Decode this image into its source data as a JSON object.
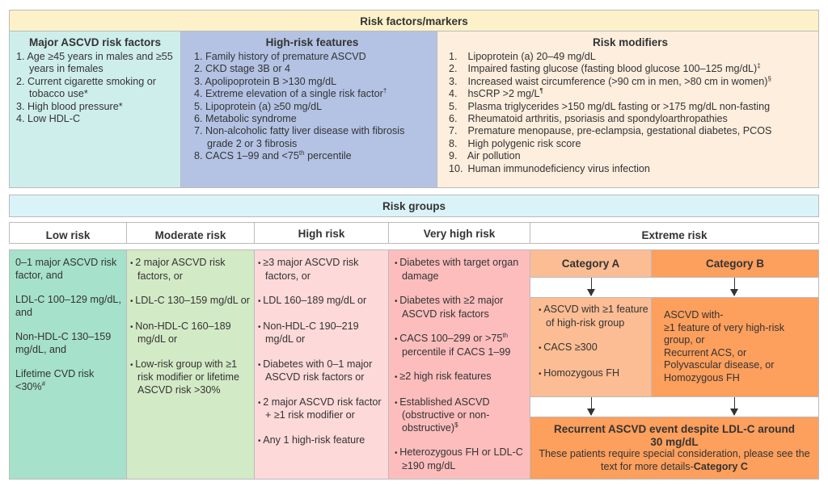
{
  "risk_factors": {
    "title": "Risk factors/markers",
    "major": {
      "title": "Major ASCVD risk factors",
      "items": [
        {
          "n": "1.",
          "text": "Age ≥45 years in males and ≥55 years in females",
          "sup": ""
        },
        {
          "n": "2.",
          "text": "Current cigarette smoking or tobacco use*",
          "sup": ""
        },
        {
          "n": "3.",
          "text": "High blood pressure*",
          "sup": ""
        },
        {
          "n": "4.",
          "text": "Low HDL-C",
          "sup": ""
        }
      ]
    },
    "high_risk": {
      "title": "High-risk features",
      "items": [
        {
          "n": "1.",
          "text": "Family history of premature ASCVD",
          "sup": ""
        },
        {
          "n": "2.",
          "text": "CKD stage 3B or 4",
          "sup": ""
        },
        {
          "n": "3.",
          "text": "Apolipoprotein B >130 mg/dL",
          "sup": ""
        },
        {
          "n": "4.",
          "text": "Extreme elevation of a single risk factor",
          "sup": "†"
        },
        {
          "n": "5.",
          "text": "Lipoprotein (a) ≥50 mg/dL",
          "sup": ""
        },
        {
          "n": "6.",
          "text": "Metabolic syndrome",
          "sup": ""
        },
        {
          "n": "7.",
          "text": "Non-alcoholic fatty liver disease with fibrosis grade 2 or 3 fibrosis",
          "sup": ""
        },
        {
          "n": "8.",
          "text": "CACS 1–99 and <75",
          "sup": "th",
          "after": " percentile"
        }
      ]
    },
    "modifiers": {
      "title": "Risk modifiers",
      "items": [
        {
          "n": "1.",
          "text": "Lipoprotein (a) 20–49 mg/dL",
          "sup": ""
        },
        {
          "n": "2.",
          "text": "Impaired fasting glucose (fasting blood glucose 100–125 mg/dL)",
          "sup": "‡"
        },
        {
          "n": "3.",
          "text": "Increased waist circumference (>90 cm in men, >80 cm in women)",
          "sup": "§"
        },
        {
          "n": "4.",
          "text": "hsCRP >2 mg/L",
          "sup": "¶"
        },
        {
          "n": "5.",
          "text": "Plasma triglycerides >150 mg/dL fasting or >175 mg/dL non-fasting",
          "sup": ""
        },
        {
          "n": "6.",
          "text": "Rheumatoid arthritis, psoriasis and spondyloarthropathies",
          "sup": ""
        },
        {
          "n": "7.",
          "text": "Premature menopause, pre-eclampsia, gestational diabetes, PCOS",
          "sup": ""
        },
        {
          "n": "8.",
          "text": "High polygenic risk score",
          "sup": ""
        },
        {
          "n": "9.",
          "text": "Air pollution",
          "sup": ""
        },
        {
          "n": "10.",
          "text": "Human immunodeficiency virus infection",
          "sup": ""
        }
      ]
    }
  },
  "risk_groups": {
    "title": "Risk groups",
    "headers": [
      "Low risk",
      "Moderate risk",
      "High risk",
      "Very high risk",
      "Extreme risk"
    ],
    "low": [
      {
        "text": "0–1 major ASCVD risk factor, and",
        "sup": ""
      },
      {
        "text": "LDL-C 100–129 mg/dL, and",
        "sup": ""
      },
      {
        "text": "Non-HDL-C 130–159 mg/dL, and",
        "sup": ""
      },
      {
        "text": "Lifetime CVD risk <30%",
        "sup": "#"
      }
    ],
    "moderate": [
      {
        "text": "2 major ASCVD risk factors, or",
        "sup": ""
      },
      {
        "text": "LDL-C 130–159 mg/dL or",
        "sup": ""
      },
      {
        "text": "Non-HDL-C 160–189 mg/dL or",
        "sup": ""
      },
      {
        "text": "Low-risk group with ≥1 risk modifier or lifetime ASCVD risk >30%",
        "sup": ""
      }
    ],
    "high": [
      {
        "text": "≥3 major ASCVD risk factors, or",
        "sup": ""
      },
      {
        "text": "LDL 160–189 mg/dL or",
        "sup": ""
      },
      {
        "text": "Non-HDL-C 190–219 mg/dL or",
        "sup": ""
      },
      {
        "text": "Diabetes with 0–1 major ASCVD risk factors or",
        "sup": ""
      },
      {
        "text": "2 major ASCVD risk factor + ≥1 risk modifier or",
        "sup": ""
      },
      {
        "text": "Any 1 high-risk feature",
        "sup": ""
      }
    ],
    "very_high": [
      {
        "text": "Diabetes with target organ damage",
        "sup": ""
      },
      {
        "text": "Diabetes with ≥2 major ASCVD risk factors",
        "sup": ""
      },
      {
        "text": "CACS 100–299 or >75",
        "sup": "th",
        "after": " percentile if CACS 1–99"
      },
      {
        "text": "≥2 high risk features",
        "sup": ""
      },
      {
        "text": "Established ASCVD (obstructive or non-obstructive)",
        "sup": "$"
      },
      {
        "text": "Heterozygous FH or LDL-C ≥190 mg/dL",
        "sup": ""
      }
    ],
    "extreme": {
      "cat_a": {
        "title": "Category A",
        "items": [
          "ASCVD with ≥1 feature of high-risk group",
          "CACS ≥300",
          "Homozygous FH"
        ]
      },
      "cat_b": {
        "title": "Category B",
        "intro": "ASCVD with-",
        "items": [
          "≥1 feature of very high-risk group, or",
          "Recurrent ACS, or",
          "Polyvascular disease, or",
          "Homozygous FH"
        ]
      },
      "cat_c": {
        "title": "Recurrent ASCVD event despite LDL-C around 30 mg/dL",
        "text": "These patients require special consideration, please see the text for more details-",
        "label": "Category C"
      }
    }
  },
  "colors": {
    "header_yellow": "#fdf1c9",
    "major": "#ceeeec",
    "high_risk": "#b4c3e4",
    "modifiers": "#fdeede",
    "groups_bar": "#daf3f9",
    "low": "#a6e1cb",
    "moderate": "#d3eac6",
    "high": "#fdd9d9",
    "very_high": "#fdbdbd",
    "cat_a": "#fcbd94",
    "cat_b": "#fd9f5d"
  }
}
